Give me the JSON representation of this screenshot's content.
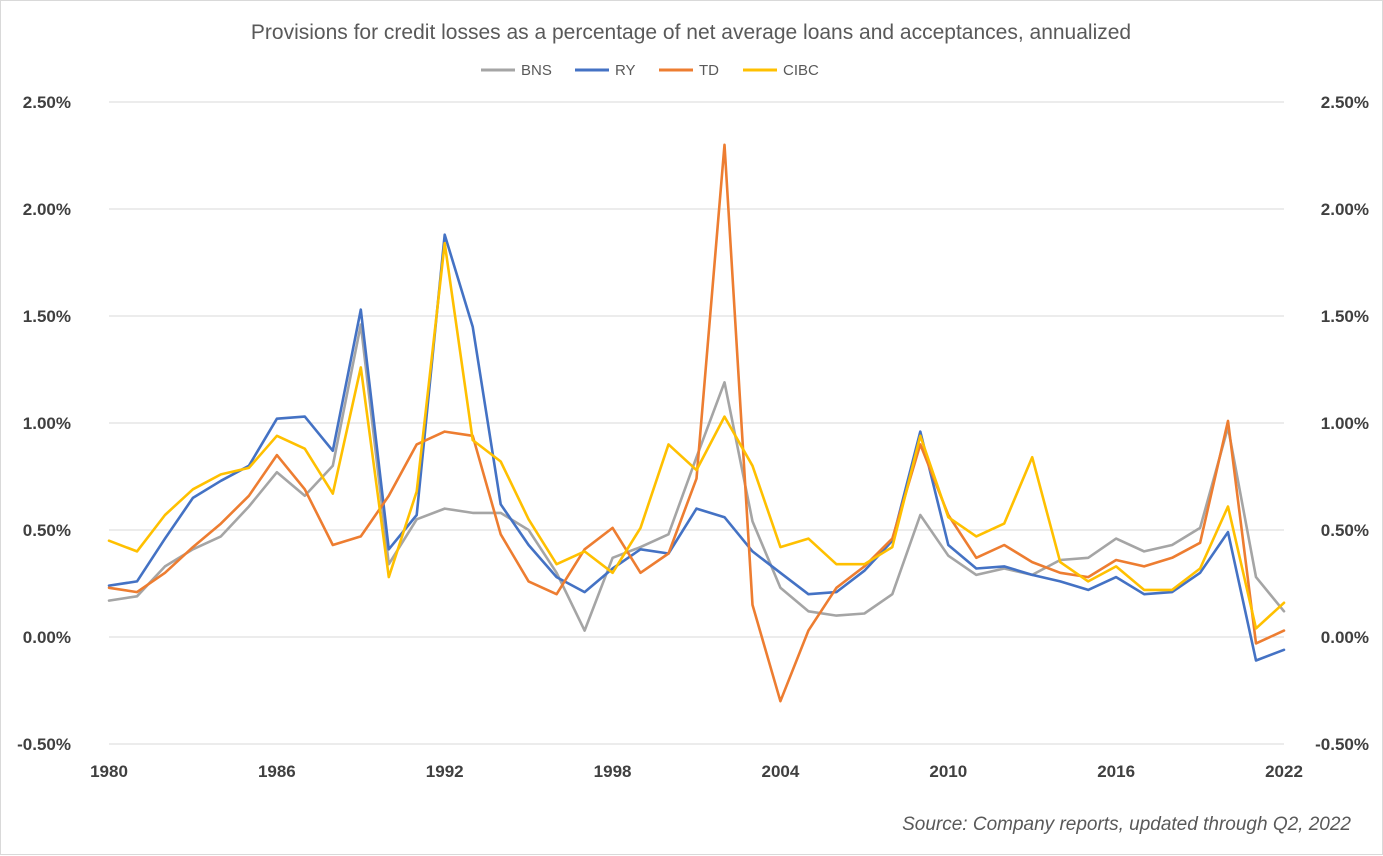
{
  "chart_data": {
    "type": "line",
    "title": "Provisions for credit losses as a percentage of net average loans and acceptances, annualized",
    "source": "Source: Company reports, updated through Q2, 2022",
    "legend_position": "top",
    "grid": true,
    "ylim": [
      -0.5,
      2.5
    ],
    "y_ticks": [
      2.5,
      2.0,
      1.5,
      1.0,
      0.5,
      0.0,
      -0.5
    ],
    "y_tick_labels": [
      "2.50%",
      "2.00%",
      "1.50%",
      "1.00%",
      "0.50%",
      "0.00%",
      "-0.50%"
    ],
    "x_tick_labels": [
      "1980",
      "1986",
      "1992",
      "1998",
      "2004",
      "2010",
      "2016",
      "2022"
    ],
    "x": [
      1980,
      1981,
      1982,
      1983,
      1984,
      1985,
      1986,
      1987,
      1988,
      1989,
      1990,
      1991,
      1992,
      1993,
      1994,
      1995,
      1996,
      1997,
      1998,
      1999,
      2000,
      2001,
      2002,
      2003,
      2004,
      2005,
      2006,
      2007,
      2008,
      2009,
      2010,
      2011,
      2012,
      2013,
      2014,
      2015,
      2016,
      2017,
      2018,
      2019,
      2020,
      2021,
      2022
    ],
    "series": [
      {
        "name": "BNS",
        "color": "#a5a5a5",
        "values": [
          0.17,
          0.19,
          0.33,
          0.41,
          0.47,
          0.61,
          0.77,
          0.66,
          0.8,
          1.46,
          0.34,
          0.55,
          0.6,
          0.58,
          0.58,
          0.5,
          0.3,
          0.03,
          0.37,
          0.42,
          0.48,
          0.84,
          1.19,
          0.54,
          0.23,
          0.12,
          0.1,
          0.11,
          0.2,
          0.57,
          0.38,
          0.29,
          0.32,
          0.29,
          0.36,
          0.37,
          0.46,
          0.4,
          0.43,
          0.51,
          0.98,
          0.28,
          0.12
        ]
      },
      {
        "name": "RY",
        "color": "#4472c4",
        "values": [
          0.24,
          0.26,
          0.46,
          0.65,
          0.73,
          0.8,
          1.02,
          1.03,
          0.87,
          1.53,
          0.41,
          0.57,
          1.88,
          1.45,
          0.62,
          0.43,
          0.28,
          0.21,
          0.32,
          0.41,
          0.39,
          0.6,
          0.56,
          0.4,
          0.3,
          0.2,
          0.21,
          0.31,
          0.45,
          0.96,
          0.43,
          0.32,
          0.33,
          0.29,
          0.26,
          0.22,
          0.28,
          0.2,
          0.21,
          0.3,
          0.49,
          -0.11,
          -0.06
        ]
      },
      {
        "name": "TD",
        "color": "#ed7d31",
        "values": [
          0.23,
          0.21,
          0.3,
          0.42,
          0.53,
          0.66,
          0.85,
          0.69,
          0.43,
          0.47,
          0.66,
          0.9,
          0.96,
          0.94,
          0.48,
          0.26,
          0.2,
          0.41,
          0.51,
          0.3,
          0.39,
          0.74,
          2.3,
          0.15,
          -0.3,
          0.03,
          0.23,
          0.33,
          0.46,
          0.9,
          0.57,
          0.37,
          0.43,
          0.35,
          0.3,
          0.28,
          0.36,
          0.33,
          0.37,
          0.44,
          1.01,
          -0.03,
          0.03
        ]
      },
      {
        "name": "CIBC",
        "color": "#ffc000",
        "values": [
          0.45,
          0.4,
          0.57,
          0.69,
          0.76,
          0.79,
          0.94,
          0.88,
          0.67,
          1.26,
          0.28,
          0.68,
          1.84,
          0.92,
          0.82,
          0.55,
          0.34,
          0.4,
          0.3,
          0.51,
          0.9,
          0.78,
          1.03,
          0.8,
          0.42,
          0.46,
          0.34,
          0.34,
          0.42,
          0.94,
          0.56,
          0.47,
          0.53,
          0.84,
          0.35,
          0.26,
          0.33,
          0.22,
          0.22,
          0.32,
          0.61,
          0.04,
          0.16
        ]
      }
    ]
  }
}
